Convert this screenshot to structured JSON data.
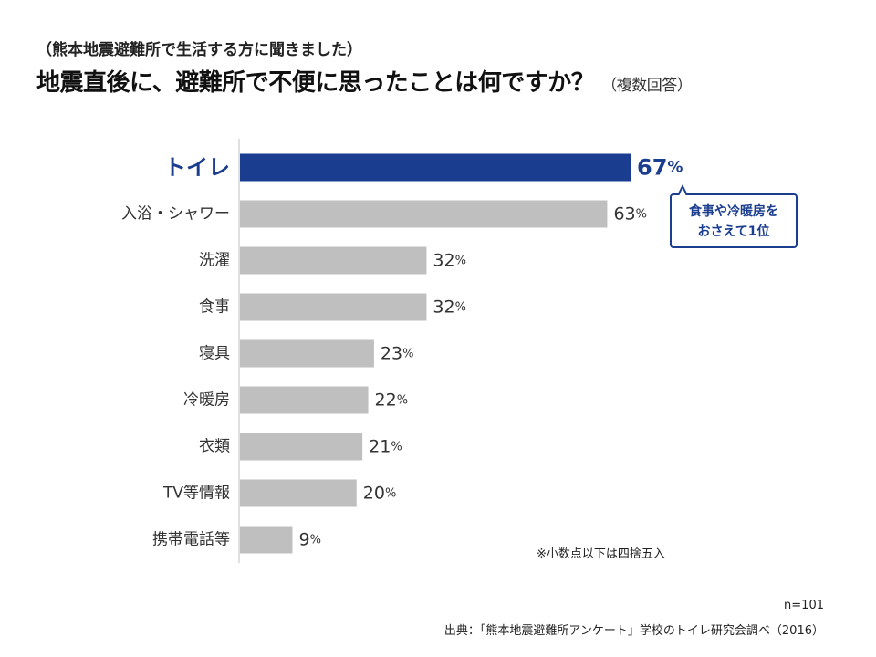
{
  "header": {
    "subtitle": "（熊本地震避難所で生活する方に聞きました）",
    "title": "地震直後に、避難所で不便に思ったことは何ですか？",
    "title_note": "（複数回答）"
  },
  "chart_data": {
    "type": "bar",
    "orientation": "horizontal",
    "categories": [
      "トイレ",
      "入浴・シャワー",
      "洗濯",
      "食事",
      "寝具",
      "冷暖房",
      "衣類",
      "TV等情報",
      "携帯電話等"
    ],
    "values": [
      67,
      63,
      32,
      32,
      23,
      22,
      21,
      20,
      9
    ],
    "unit": "%",
    "highlight_index": 0,
    "colors": {
      "highlight": "#1a3d8f",
      "default": "#bfbfbf",
      "axis": "#bfbfbf"
    },
    "xlim": [
      0,
      100
    ],
    "grid": false
  },
  "callout": {
    "line1": "食事や冷暖房を",
    "line2": "おさえて1位"
  },
  "footer": {
    "rounding_note": "※小数点以下は四捨五入",
    "n": "n=101",
    "source": "出典：「熊本地震避難所アンケート」学校のトイレ研究会調べ（2016）"
  }
}
